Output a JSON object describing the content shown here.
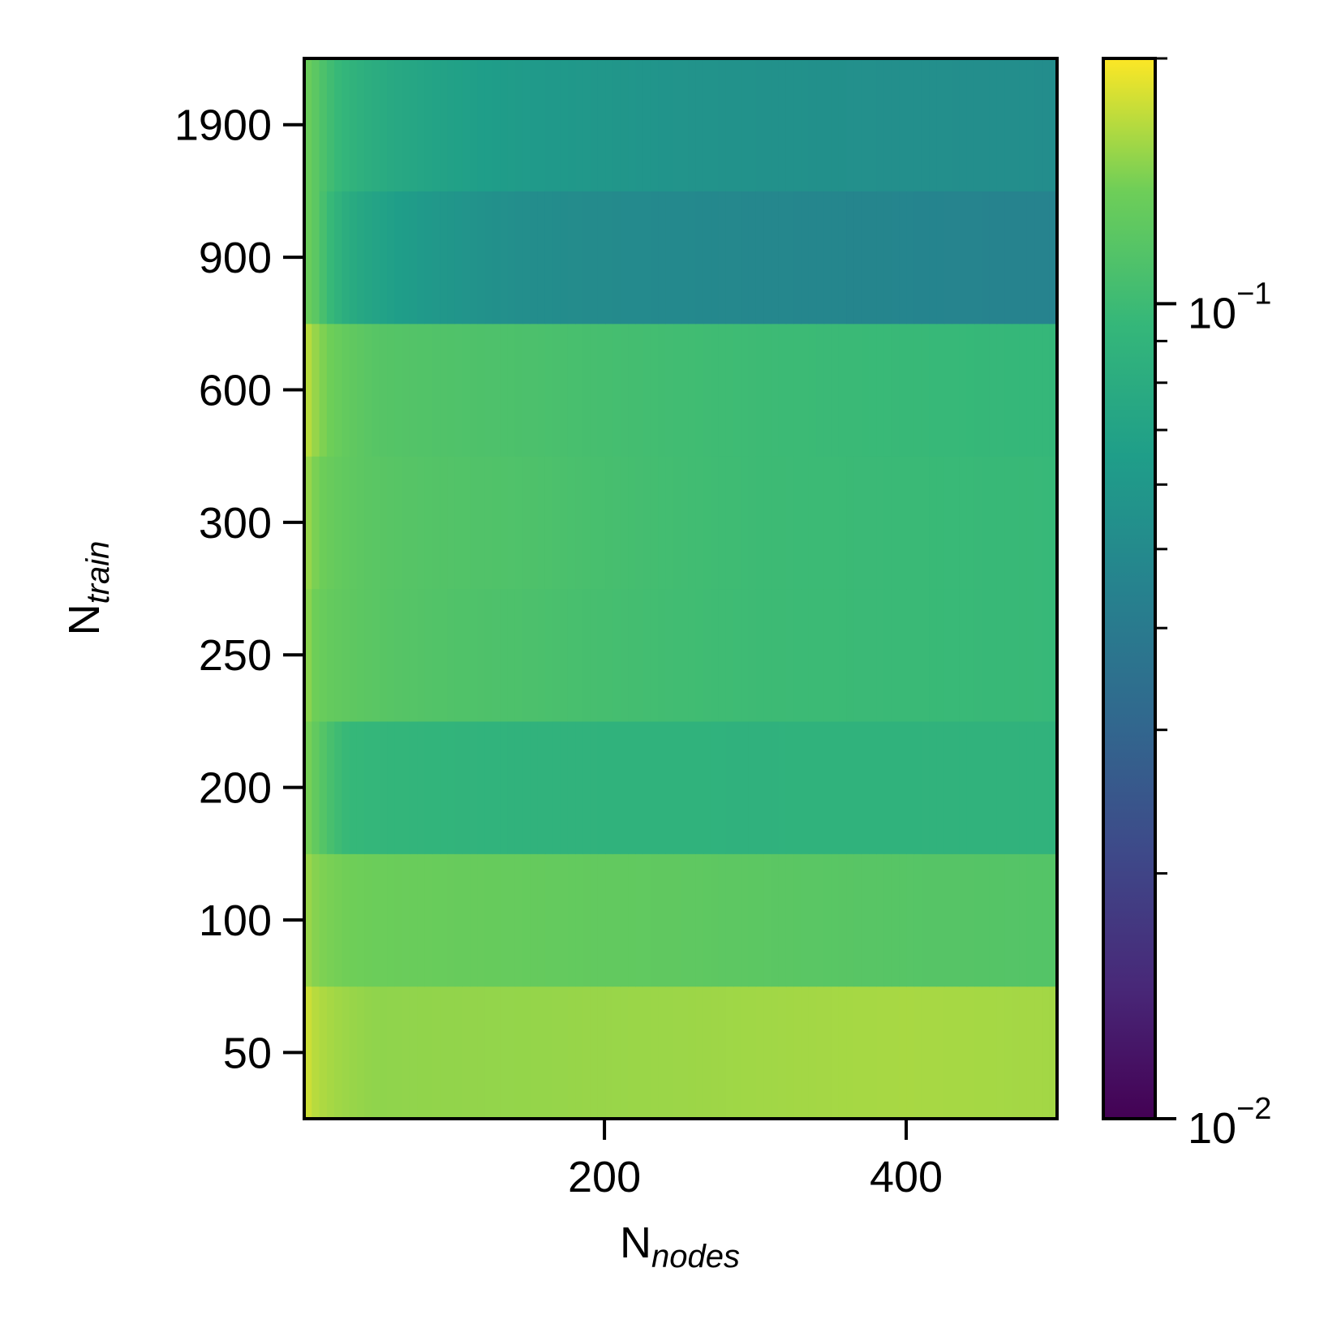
{
  "chart_data": {
    "type": "heatmap",
    "title": "",
    "xlabel": {
      "base": "N",
      "sub": "nodes"
    },
    "ylabel": {
      "base": "N",
      "sub": "train"
    },
    "x": {
      "range": [
        1,
        500
      ],
      "ticks": [
        200,
        400
      ],
      "tick_labels": [
        "200",
        "400"
      ]
    },
    "y_categories": [
      "50",
      "100",
      "200",
      "250",
      "300",
      "600",
      "900",
      "1900"
    ],
    "colorbar": {
      "scale": "log",
      "range": [
        0.01,
        0.2
      ],
      "colormap": "viridis",
      "major_ticks": [
        {
          "value": 0.01,
          "base": "10",
          "exp": "−2"
        },
        {
          "value": 0.1,
          "base": "10",
          "exp": "−1"
        }
      ],
      "minor_ticks": [
        0.02,
        0.03,
        0.04,
        0.05,
        0.06,
        0.07,
        0.08,
        0.09,
        0.2
      ]
    },
    "rows": [
      {
        "y": "50",
        "values_at_x": [
          [
            1,
            0.19
          ],
          [
            10,
            0.165
          ],
          [
            50,
            0.15
          ],
          [
            150,
            0.152
          ],
          [
            250,
            0.155
          ],
          [
            400,
            0.16
          ],
          [
            500,
            0.158
          ]
        ]
      },
      {
        "y": "100",
        "values_at_x": [
          [
            1,
            0.165
          ],
          [
            10,
            0.145
          ],
          [
            50,
            0.135
          ],
          [
            150,
            0.13
          ],
          [
            250,
            0.125
          ],
          [
            400,
            0.118
          ],
          [
            500,
            0.116
          ]
        ]
      },
      {
        "y": "200",
        "values_at_x": [
          [
            1,
            0.16
          ],
          [
            10,
            0.125
          ],
          [
            30,
            0.095
          ],
          [
            150,
            0.088
          ],
          [
            300,
            0.087
          ],
          [
            500,
            0.088
          ]
        ]
      },
      {
        "y": "250",
        "values_at_x": [
          [
            1,
            0.165
          ],
          [
            10,
            0.135
          ],
          [
            50,
            0.12
          ],
          [
            150,
            0.11
          ],
          [
            300,
            0.1
          ],
          [
            500,
            0.096
          ]
        ]
      },
      {
        "y": "300",
        "values_at_x": [
          [
            1,
            0.17
          ],
          [
            10,
            0.14
          ],
          [
            50,
            0.12
          ],
          [
            150,
            0.112
          ],
          [
            300,
            0.1
          ],
          [
            500,
            0.096
          ]
        ]
      },
      {
        "y": "600",
        "values_at_x": [
          [
            1,
            0.19
          ],
          [
            10,
            0.15
          ],
          [
            50,
            0.118
          ],
          [
            150,
            0.11
          ],
          [
            300,
            0.1
          ],
          [
            500,
            0.094
          ]
        ]
      },
      {
        "y": "900",
        "values_at_x": [
          [
            1,
            0.15
          ],
          [
            10,
            0.12
          ],
          [
            30,
            0.08
          ],
          [
            150,
            0.052
          ],
          [
            300,
            0.048
          ],
          [
            500,
            0.045
          ]
        ]
      },
      {
        "y": "1900",
        "values_at_x": [
          [
            1,
            0.15
          ],
          [
            10,
            0.12
          ],
          [
            30,
            0.09
          ],
          [
            150,
            0.062
          ],
          [
            300,
            0.055
          ],
          [
            500,
            0.052
          ]
        ]
      }
    ]
  }
}
